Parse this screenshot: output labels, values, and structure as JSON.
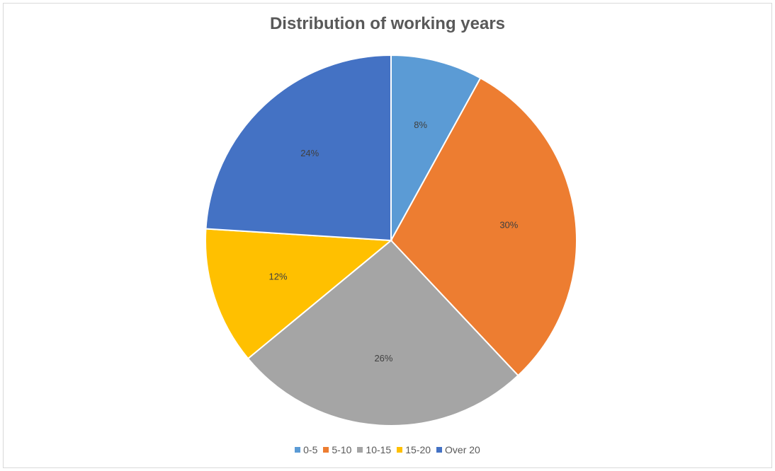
{
  "chart_data": {
    "type": "pie",
    "title": "Distribution of working years",
    "categories": [
      "0-5",
      "5-10",
      "10-15",
      "15-20",
      "Over 20"
    ],
    "values": [
      8,
      30,
      26,
      12,
      24
    ],
    "labels": [
      "8%",
      "30%",
      "26%",
      "12%",
      "24%"
    ],
    "colors": [
      "#5b9bd5",
      "#ed7d31",
      "#a5a5a5",
      "#ffc000",
      "#4472c4"
    ],
    "legend_position": "bottom",
    "start_angle": "12 o'clock",
    "direction": "clockwise"
  }
}
